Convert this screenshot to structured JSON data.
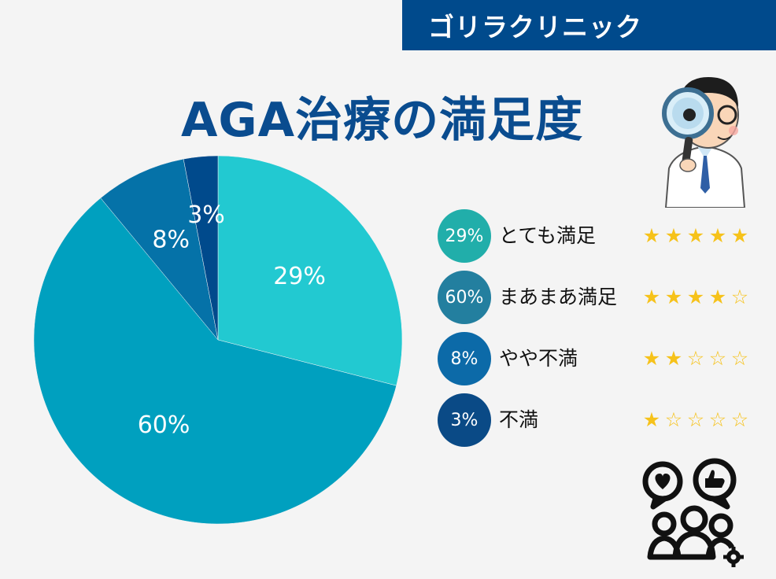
{
  "header": {
    "brand": "ゴリラクリニック",
    "title": "AGA治療の満足度"
  },
  "chart_data": {
    "type": "pie",
    "categories": [
      "とても満足",
      "まあまあ満足",
      "やや不満",
      "不満"
    ],
    "values": [
      29,
      60,
      8,
      3
    ],
    "data_labels": [
      "29%",
      "60%",
      "8%",
      "3%"
    ],
    "colors": [
      "#22c9d1",
      "#00a0bf",
      "#0572a8",
      "#004a8c"
    ],
    "legend_placement": "right"
  },
  "legend": [
    {
      "percent": "29%",
      "label": "とても満足",
      "rating": 5,
      "badge_color": "#21aeaa"
    },
    {
      "percent": "60%",
      "label": "まあまあ満足",
      "rating": 4,
      "badge_color": "#237f9f"
    },
    {
      "percent": "8%",
      "label": "やや不満",
      "rating": 2,
      "badge_color": "#0c6aa8"
    },
    {
      "percent": "3%",
      "label": "不満",
      "rating": 1,
      "badge_color": "#0a4a86"
    }
  ],
  "icons": {
    "doctor": "doctor-magnifier-icon",
    "people": "people-feedback-icon"
  }
}
